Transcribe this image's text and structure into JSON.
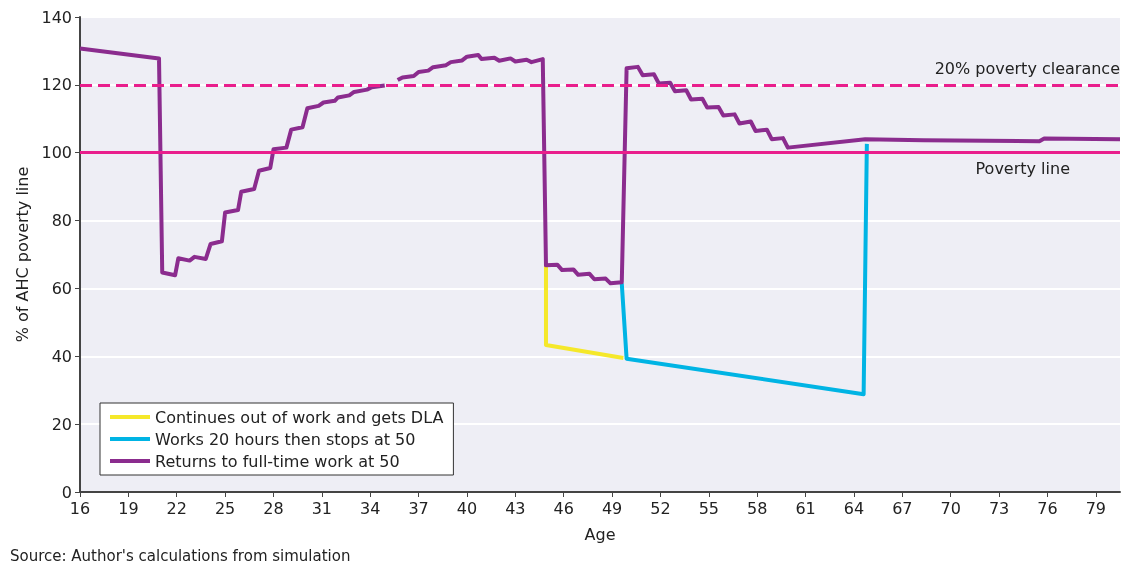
{
  "chart_data": {
    "type": "line",
    "xlabel": "Age",
    "ylabel": "% of AHC poverty line",
    "xlim": [
      16,
      80.5
    ],
    "xticks": [
      16,
      19,
      22,
      25,
      28,
      31,
      34,
      37,
      40,
      43,
      46,
      49,
      52,
      55,
      58,
      61,
      64,
      67,
      70,
      73,
      76,
      79
    ],
    "ylim": [
      0,
      140
    ],
    "yticks": [
      0,
      20,
      40,
      60,
      80,
      100,
      120,
      140
    ],
    "grid": "y",
    "legend": "bottom left",
    "marker": "none",
    "line_style": "solid",
    "series": [
      {
        "name": "Continues out of work and gets DLA",
        "color": "#f5e82a",
        "x": [
          44.9,
          44.9,
          49.7
        ],
        "values": [
          66.8,
          43.3,
          39.5
        ]
      },
      {
        "name": "Works 20 hours then stops at 50",
        "color": "#00b4e4",
        "x": [
          49.6,
          49.9,
          64.6,
          64.8
        ],
        "values": [
          61.5,
          39.3,
          28.8,
          102.6
        ]
      },
      {
        "name": "Returns to full-time work at 50",
        "color": "#8b2c8e",
        "x": [
          16,
          20.9,
          21.1,
          21.9,
          22.1,
          22.8,
          23.1,
          23.8,
          24.1,
          24.8,
          25,
          25.8,
          26,
          26.8,
          27.1,
          27.8,
          28,
          28.8,
          29.1,
          29.8,
          30.1,
          30.8,
          31.1,
          31.8,
          32,
          32.7,
          33,
          33.8,
          34.1,
          34.9,
          35.3,
          35.7,
          36,
          36.7,
          37,
          37.6,
          37.9,
          38.7,
          39,
          39.7,
          40,
          40.7,
          40.9,
          41.7,
          42,
          42.7,
          43,
          43.7,
          44,
          44.7,
          44.9,
          45.6,
          45.9,
          46.6,
          46.9,
          47.6,
          47.9,
          48.6,
          48.9,
          49.6,
          49.9,
          50.6,
          50.9,
          51.6,
          51.9,
          52.6,
          52.9,
          53.6,
          53.9,
          54.6,
          54.9,
          55.6,
          55.9,
          56.6,
          56.9,
          57.6,
          57.9,
          58.6,
          58.9,
          59.6,
          59.9,
          64.7,
          68.3,
          75.5,
          75.8,
          80.5
        ],
        "values": [
          130.7,
          127.8,
          64.7,
          63.9,
          68.9,
          68.2,
          69.3,
          68.7,
          73.1,
          73.9,
          82.4,
          83.1,
          88.5,
          89.3,
          94.7,
          95.5,
          101,
          101.5,
          106.8,
          107.5,
          113.1,
          113.8,
          114.8,
          115.3,
          116.3,
          116.9,
          117.9,
          118.6,
          119.3,
          119.8,
          null,
          121.4,
          122.2,
          122.6,
          123.8,
          124.2,
          125.2,
          125.8,
          126.7,
          127.2,
          128.3,
          128.8,
          127.6,
          128,
          127.1,
          127.8,
          126.9,
          127.4,
          126.7,
          127.6,
          66.8,
          67,
          65.4,
          65.6,
          64,
          64.3,
          62.7,
          62.9,
          61.5,
          61.8,
          124.9,
          125.3,
          122.8,
          123.1,
          120.4,
          120.6,
          118.1,
          118.4,
          115.7,
          115.9,
          113.3,
          113.5,
          111,
          111.3,
          108.6,
          109.2,
          106.4,
          106.8,
          104,
          104.3,
          101.5,
          104,
          103.7,
          103.4,
          104.2,
          104
        ]
      }
    ],
    "ref_lines": [
      {
        "axis": "y",
        "value": 120,
        "label": "20% poverty clearance",
        "color": "#e91e8c",
        "line_style": "dashed"
      },
      {
        "axis": "y",
        "value": 100,
        "label": "Poverty line",
        "color": "#e91e8c",
        "line_style": "solid"
      }
    ],
    "annotations": [
      "Source: Author's calculations from simulation"
    ]
  }
}
